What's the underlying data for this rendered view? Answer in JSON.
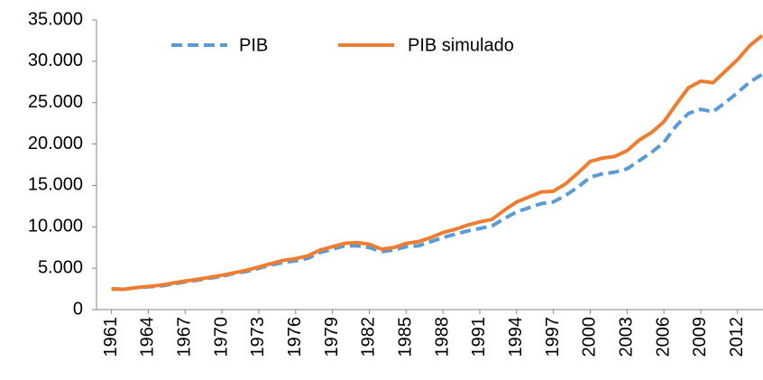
{
  "chart_data": {
    "type": "line",
    "x": [
      1961,
      1962,
      1963,
      1964,
      1965,
      1966,
      1967,
      1968,
      1969,
      1970,
      1971,
      1972,
      1973,
      1974,
      1975,
      1976,
      1977,
      1978,
      1979,
      1980,
      1981,
      1982,
      1983,
      1984,
      1985,
      1986,
      1987,
      1988,
      1989,
      1990,
      1991,
      1992,
      1993,
      1994,
      1995,
      1996,
      1997,
      1998,
      1999,
      2000,
      2001,
      2002,
      2003,
      2004,
      2005,
      2006,
      2007,
      2008,
      2009,
      2010,
      2011,
      2012,
      2013,
      2014
    ],
    "series": [
      {
        "name": "PIB",
        "color": "#5b9bd5",
        "dashed": true,
        "values": [
          2500,
          2450,
          2650,
          2750,
          2850,
          3100,
          3350,
          3550,
          3800,
          4000,
          4400,
          4600,
          5000,
          5400,
          5700,
          5900,
          6200,
          6900,
          7300,
          7700,
          7700,
          7500,
          7000,
          7200,
          7600,
          7700,
          8200,
          8700,
          9100,
          9500,
          9800,
          10100,
          11000,
          11800,
          12300,
          12800,
          13000,
          13800,
          14800,
          16000,
          16400,
          16600,
          17000,
          18000,
          19000,
          20200,
          22200,
          23700,
          24200,
          23900,
          25000,
          26200,
          27500,
          28400
        ]
      },
      {
        "name": "PIB simulado",
        "color": "#ed7d31",
        "dashed": false,
        "values": [
          2500,
          2450,
          2650,
          2800,
          2950,
          3200,
          3450,
          3650,
          3900,
          4150,
          4450,
          4750,
          5150,
          5550,
          5950,
          6150,
          6500,
          7200,
          7600,
          8000,
          8100,
          7900,
          7300,
          7500,
          8000,
          8200,
          8700,
          9300,
          9700,
          10200,
          10600,
          10900,
          12000,
          13000,
          13600,
          14200,
          14300,
          15200,
          16500,
          17900,
          18300,
          18500,
          19200,
          20500,
          21400,
          22700,
          24800,
          26800,
          27600,
          27400,
          28800,
          30200,
          31900,
          33100
        ]
      }
    ],
    "xlim": [
      1960,
      2014
    ],
    "xticks": [
      1961,
      1964,
      1967,
      1970,
      1973,
      1976,
      1979,
      1982,
      1985,
      1988,
      1991,
      1994,
      1997,
      2000,
      2003,
      2006,
      2009,
      2012
    ],
    "ylim": [
      0,
      35000
    ],
    "yticks": [
      0,
      {
        "value": 5000,
        "label": "5.000"
      },
      {
        "value": 10000,
        "label": "10.000"
      },
      {
        "value": 15000,
        "label": "15.000"
      },
      {
        "value": 20000,
        "label": "20.000"
      },
      {
        "value": 25000,
        "label": "25.000"
      },
      {
        "value": 30000,
        "label": "30.000"
      },
      {
        "value": 35000,
        "label": "35.000"
      }
    ],
    "grid": false
  }
}
